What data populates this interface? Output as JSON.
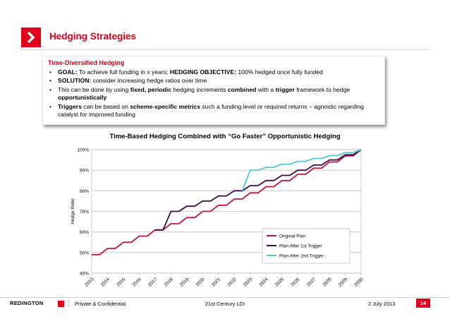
{
  "slide": {
    "title": "Hedging Strategies"
  },
  "callout": {
    "heading": "Time-Diversified Hedging",
    "bullets": [
      [
        {
          "t": "GOAL:",
          "b": true
        },
        {
          "t": " To achieve full funding in x years;  ",
          "b": false
        },
        {
          "t": "HEDGING OBJECTIVE:",
          "b": true
        },
        {
          "t": " 100% hedged once fully funded",
          "b": false
        }
      ],
      [
        {
          "t": "SOLUTION:",
          "b": true
        },
        {
          "t": " consider increasing hedge ratios over time",
          "b": false
        }
      ],
      [
        {
          "t": "This can be done by using ",
          "b": false
        },
        {
          "t": "fixed, periodic",
          "b": true
        },
        {
          "t": " hedging increments ",
          "b": false
        },
        {
          "t": "combined",
          "b": true
        },
        {
          "t": " with a ",
          "b": false
        },
        {
          "t": "trigger",
          "b": true
        },
        {
          "t": " framework to hedge ",
          "b": false
        },
        {
          "t": "opportunistically",
          "b": true
        }
      ],
      [
        {
          "t": "Triggers",
          "b": true
        },
        {
          "t": " can be based on ",
          "b": false
        },
        {
          "t": "scheme-specific metrics",
          "b": true
        },
        {
          "t": " such a funding level or required returns – agnostic regarding catalyst for improved funding",
          "b": false
        }
      ]
    ]
  },
  "chart_data": {
    "type": "line",
    "title": "Time-Based Hedging Combined with “Go Faster”  Opportunistic Hedging",
    "xlabel": "",
    "ylabel": "Hedge Ratio",
    "x_tick_labels": [
      "2013",
      "2014",
      "2015",
      "2016",
      "2017",
      "2018",
      "2019",
      "2020",
      "2021",
      "2022",
      "2023",
      "2024",
      "2025",
      "2026",
      "2027",
      "2028",
      "2029",
      "2030"
    ],
    "y_tick_labels": [
      "40%",
      "50%",
      "60%",
      "70%",
      "80%",
      "90%",
      "100%"
    ],
    "ylim": [
      40,
      100
    ],
    "xlim": [
      2013,
      2030
    ],
    "grid": "horizontal",
    "legend_position": "bottom-right",
    "series": [
      {
        "name": "Original Plan",
        "color": "#c0143c",
        "points": [
          [
            2013,
            49
          ],
          [
            2013.5,
            49
          ],
          [
            2014,
            52
          ],
          [
            2014.5,
            52
          ],
          [
            2015,
            55
          ],
          [
            2015.5,
            55
          ],
          [
            2016,
            58
          ],
          [
            2016.5,
            58
          ],
          [
            2017,
            61
          ],
          [
            2017.5,
            61
          ],
          [
            2018,
            64
          ],
          [
            2018.5,
            64
          ],
          [
            2019,
            67
          ],
          [
            2019.5,
            67
          ],
          [
            2020,
            70
          ],
          [
            2020.5,
            70
          ],
          [
            2021,
            73
          ],
          [
            2021.5,
            73
          ],
          [
            2022,
            76
          ],
          [
            2022.5,
            76
          ],
          [
            2023,
            79
          ],
          [
            2023.5,
            79
          ],
          [
            2024,
            82
          ],
          [
            2024.5,
            82
          ],
          [
            2025,
            85
          ],
          [
            2025.5,
            85
          ],
          [
            2026,
            88
          ],
          [
            2026.5,
            88
          ],
          [
            2027,
            91
          ],
          [
            2027.5,
            91
          ],
          [
            2028,
            94
          ],
          [
            2028.5,
            94
          ],
          [
            2029,
            97
          ],
          [
            2029.5,
            97
          ],
          [
            2030,
            100
          ]
        ]
      },
      {
        "name": "Plan After 1st Trigger",
        "color": "#3c0a49",
        "points": [
          [
            2017,
            61
          ],
          [
            2017.5,
            61
          ],
          [
            2018,
            70
          ],
          [
            2018.5,
            70
          ],
          [
            2019,
            72.5
          ],
          [
            2019.5,
            72.5
          ],
          [
            2020,
            75
          ],
          [
            2020.5,
            75
          ],
          [
            2021,
            77.5
          ],
          [
            2021.5,
            77.5
          ],
          [
            2022,
            80
          ],
          [
            2022.5,
            80
          ],
          [
            2023,
            82.5
          ],
          [
            2023.5,
            82.5
          ],
          [
            2024,
            85
          ],
          [
            2024.5,
            85
          ],
          [
            2025,
            87.5
          ],
          [
            2025.5,
            87.5
          ],
          [
            2026,
            90
          ],
          [
            2026.5,
            90
          ],
          [
            2027,
            92.5
          ],
          [
            2027.5,
            92.5
          ],
          [
            2028,
            95
          ],
          [
            2028.5,
            95
          ],
          [
            2029,
            97.5
          ],
          [
            2029.5,
            97.5
          ],
          [
            2030,
            100
          ]
        ]
      },
      {
        "name": "Plan After 2nd Trigger",
        "color": "#4fc9de",
        "points": [
          [
            2022.5,
            80
          ],
          [
            2023,
            90
          ],
          [
            2023.5,
            90
          ],
          [
            2024,
            91.4
          ],
          [
            2024.5,
            91.4
          ],
          [
            2025,
            92.9
          ],
          [
            2025.5,
            92.9
          ],
          [
            2026,
            94.3
          ],
          [
            2026.5,
            94.3
          ],
          [
            2027,
            95.7
          ],
          [
            2027.5,
            95.7
          ],
          [
            2028,
            97.1
          ],
          [
            2028.5,
            97.1
          ],
          [
            2029,
            98.6
          ],
          [
            2029.5,
            98.6
          ],
          [
            2030,
            100
          ]
        ]
      }
    ]
  },
  "footer": {
    "logo": "REDINGTON",
    "confidential": "Private & Confidential",
    "center": "21st Century LDI",
    "date": "2 July 2013",
    "page": "14"
  }
}
